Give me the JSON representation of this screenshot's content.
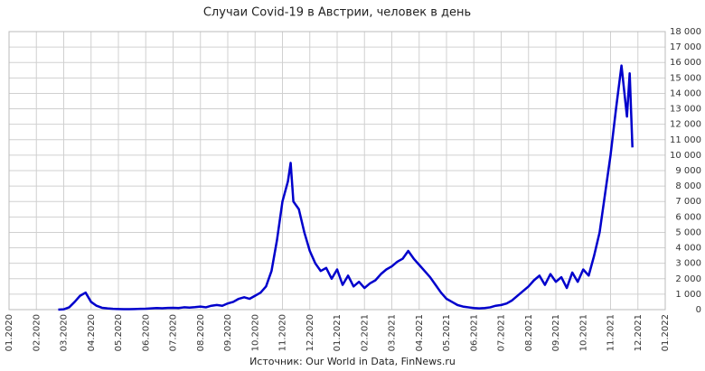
{
  "chart_data": {
    "type": "line",
    "title": "Случаи Covid-19 в Австрии, человек в день",
    "source": "Источник: Our World in Data, FinNews.ru",
    "xlim": [
      0,
      24
    ],
    "xticks": [
      {
        "value": 0,
        "label": "01.2020"
      },
      {
        "value": 1,
        "label": "02.2020"
      },
      {
        "value": 2,
        "label": "03.2020"
      },
      {
        "value": 3,
        "label": "04.2020"
      },
      {
        "value": 4,
        "label": "05.2020"
      },
      {
        "value": 5,
        "label": "06.2020"
      },
      {
        "value": 6,
        "label": "07.2020"
      },
      {
        "value": 7,
        "label": "08.2020"
      },
      {
        "value": 8,
        "label": "09.2020"
      },
      {
        "value": 9,
        "label": "10.2020"
      },
      {
        "value": 10,
        "label": "11.2020"
      },
      {
        "value": 11,
        "label": "12.2020"
      },
      {
        "value": 12,
        "label": "01.2021"
      },
      {
        "value": 13,
        "label": "02.2021"
      },
      {
        "value": 14,
        "label": "03.2021"
      },
      {
        "value": 15,
        "label": "04.2021"
      },
      {
        "value": 16,
        "label": "05.2021"
      },
      {
        "value": 17,
        "label": "06.2021"
      },
      {
        "value": 18,
        "label": "07.2021"
      },
      {
        "value": 19,
        "label": "08.2021"
      },
      {
        "value": 20,
        "label": "09.2021"
      },
      {
        "value": 21,
        "label": "10.2021"
      },
      {
        "value": 22,
        "label": "11.2021"
      },
      {
        "value": 23,
        "label": "12.2021"
      },
      {
        "value": 24,
        "label": "01.2022"
      }
    ],
    "ylim": [
      0,
      18000
    ],
    "yticks": [
      0,
      {
        "value": 1000,
        "label": "1 000"
      },
      {
        "value": 2000,
        "label": "2 000"
      },
      {
        "value": 3000,
        "label": "3 000"
      },
      {
        "value": 4000,
        "label": "4 000"
      },
      {
        "value": 5000,
        "label": "5 000"
      },
      {
        "value": 6000,
        "label": "6 000"
      },
      {
        "value": 7000,
        "label": "7 000"
      },
      {
        "value": 8000,
        "label": "8 000"
      },
      {
        "value": 9000,
        "label": "9 000"
      },
      {
        "value": 10000,
        "label": "10 000"
      },
      {
        "value": 11000,
        "label": "11 000"
      },
      {
        "value": 12000,
        "label": "12 000"
      },
      {
        "value": 13000,
        "label": "13 000"
      },
      {
        "value": 14000,
        "label": "14 000"
      },
      {
        "value": 15000,
        "label": "15 000"
      },
      {
        "value": 16000,
        "label": "16 000"
      },
      {
        "value": 17000,
        "label": "17 000"
      },
      {
        "value": 18000,
        "label": "18 000"
      }
    ],
    "grid": true,
    "color": "#0000cc",
    "x": [
      1.8,
      2.0,
      2.2,
      2.4,
      2.6,
      2.8,
      3.0,
      3.2,
      3.4,
      3.6,
      3.8,
      4.0,
      4.2,
      4.4,
      4.6,
      4.8,
      5.0,
      5.2,
      5.4,
      5.6,
      5.8,
      6.0,
      6.2,
      6.4,
      6.6,
      6.8,
      7.0,
      7.2,
      7.4,
      7.6,
      7.8,
      8.0,
      8.2,
      8.4,
      8.6,
      8.8,
      9.0,
      9.2,
      9.4,
      9.6,
      9.8,
      10.0,
      10.2,
      10.3,
      10.4,
      10.6,
      10.8,
      11.0,
      11.2,
      11.4,
      11.6,
      11.8,
      12.0,
      12.2,
      12.4,
      12.6,
      12.8,
      13.0,
      13.2,
      13.4,
      13.6,
      13.8,
      14.0,
      14.2,
      14.4,
      14.6,
      14.8,
      15.0,
      15.2,
      15.4,
      15.6,
      15.8,
      16.0,
      16.2,
      16.4,
      16.6,
      16.8,
      17.0,
      17.2,
      17.4,
      17.6,
      17.8,
      18.0,
      18.2,
      18.4,
      18.6,
      18.8,
      19.0,
      19.2,
      19.4,
      19.6,
      19.8,
      20.0,
      20.2,
      20.4,
      20.6,
      20.8,
      21.0,
      21.2,
      21.4,
      21.6,
      21.8,
      22.0,
      22.2,
      22.4,
      22.6,
      22.7,
      22.8
    ],
    "values": [
      0,
      20,
      150,
      500,
      900,
      1100,
      500,
      250,
      120,
      80,
      50,
      40,
      30,
      30,
      40,
      50,
      60,
      80,
      100,
      90,
      110,
      120,
      100,
      150,
      130,
      160,
      200,
      150,
      250,
      300,
      250,
      400,
      500,
      700,
      800,
      700,
      900,
      1100,
      1500,
      2500,
      4500,
      7000,
      8300,
      9500,
      7000,
      6500,
      5000,
      3800,
      3000,
      2500,
      2700,
      2000,
      2600,
      1600,
      2200,
      1500,
      1800,
      1400,
      1700,
      1900,
      2300,
      2600,
      2800,
      3100,
      3300,
      3800,
      3300,
      2900,
      2500,
      2100,
      1600,
      1100,
      700,
      500,
      300,
      200,
      150,
      100,
      80,
      100,
      150,
      250,
      300,
      400,
      600,
      900,
      1200,
      1500,
      1900,
      2200,
      1600,
      2300,
      1800,
      2100,
      1400,
      2400,
      1800,
      2600,
      2200,
      3500,
      5000,
      7500,
      10000,
      13000,
      15800,
      12500,
      15300,
      10500
    ]
  }
}
